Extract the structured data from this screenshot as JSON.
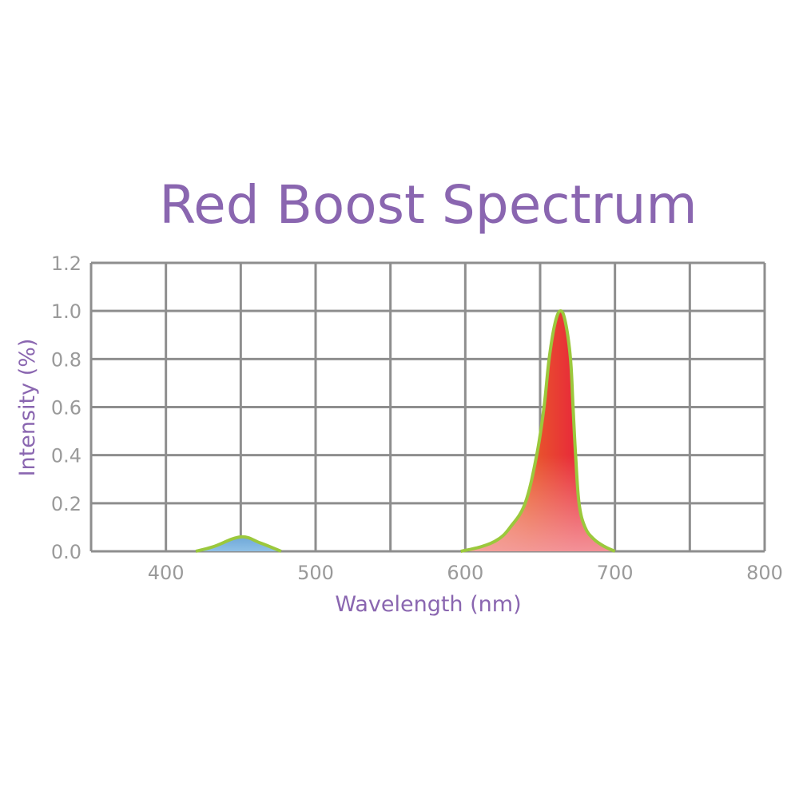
{
  "chart_data": {
    "type": "area",
    "title": "Red Boost Spectrum",
    "xlabel": "Wavelength (nm)",
    "ylabel": "Intensity (%)",
    "xlim": [
      350,
      800
    ],
    "ylim": [
      0,
      1.2
    ],
    "x_ticks": [
      400,
      500,
      600,
      700,
      800
    ],
    "x_tick_labels": [
      "400",
      "500",
      "600",
      "700",
      "800"
    ],
    "y_ticks": [
      0,
      0.2,
      0.4,
      0.6,
      0.8,
      1.0,
      1.2
    ],
    "y_tick_labels": [
      "0.0",
      "0.2",
      "0.4",
      "0.6",
      "0.8",
      "1.0",
      "1.2"
    ],
    "x_grid_step": 50,
    "grid": true,
    "series": [
      {
        "color": "#7fb2dc",
        "points": [
          [
            420,
            0
          ],
          [
            432,
            0.02
          ],
          [
            450,
            0.06
          ],
          [
            463,
            0.035
          ],
          [
            477,
            0
          ]
        ]
      },
      {
        "color": "#e8283a",
        "points": [
          [
            597,
            0
          ],
          [
            611,
            0.02
          ],
          [
            622,
            0.05
          ],
          [
            630,
            0.1
          ],
          [
            640,
            0.2
          ],
          [
            647.7,
            0.4
          ],
          [
            652.6,
            0.6
          ],
          [
            656,
            0.8
          ],
          [
            660,
            0.95
          ],
          [
            663.7,
            1.0
          ],
          [
            667,
            0.95
          ],
          [
            670.3,
            0.8
          ],
          [
            672,
            0.6
          ],
          [
            673.7,
            0.4
          ],
          [
            676,
            0.2
          ],
          [
            680,
            0.1
          ],
          [
            686,
            0.05
          ],
          [
            693,
            0.02
          ],
          [
            700,
            0
          ]
        ]
      }
    ],
    "outline_color": "#9bc83c",
    "title_color": "#8a66b0",
    "grid_color": "#8e8e8e",
    "tick_color": "#9a9a9a"
  }
}
